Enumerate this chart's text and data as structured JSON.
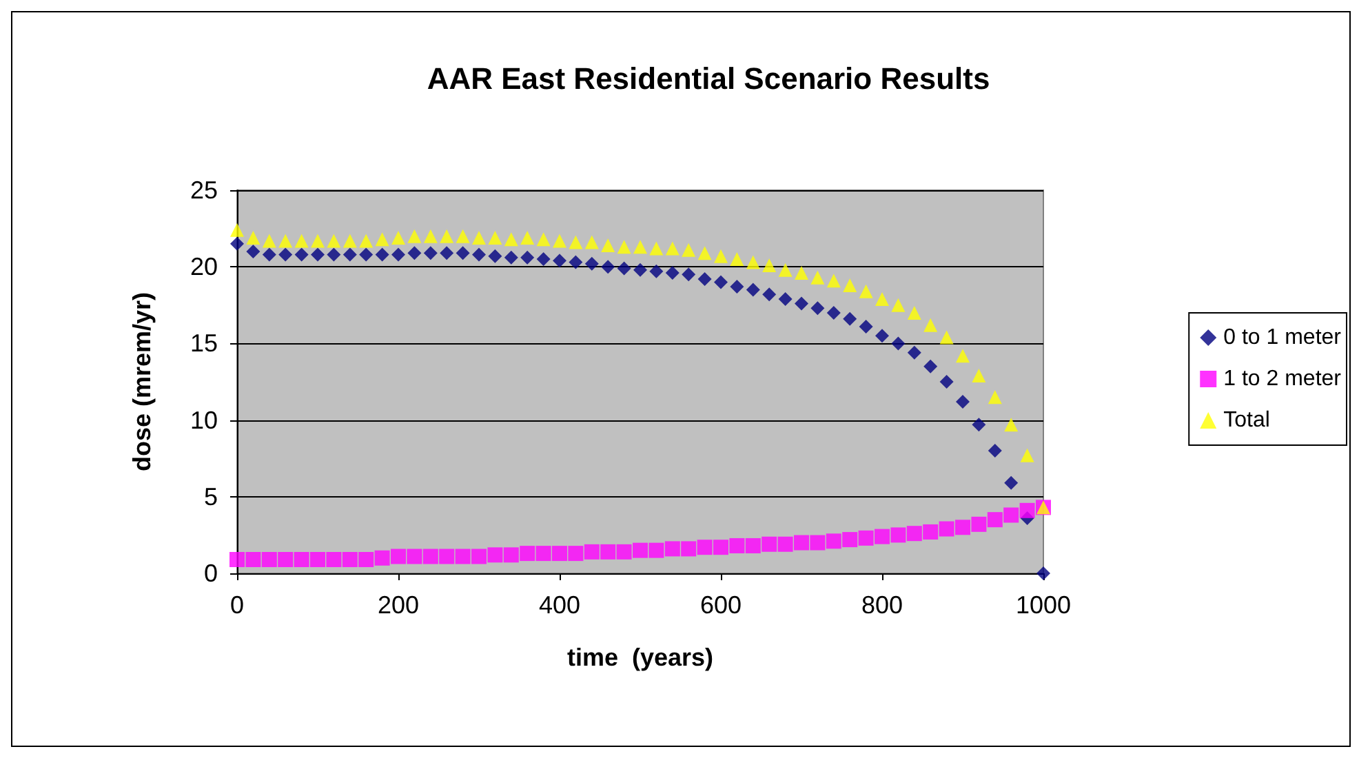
{
  "chart_data": {
    "type": "scatter",
    "title": "AAR East Residential Scenario Results",
    "xlabel": "time  (years)",
    "ylabel": "dose (mrem/yr)",
    "x": [
      0,
      20,
      40,
      60,
      80,
      100,
      120,
      140,
      160,
      180,
      200,
      220,
      240,
      260,
      280,
      300,
      320,
      340,
      360,
      380,
      400,
      420,
      440,
      460,
      480,
      500,
      520,
      540,
      560,
      580,
      600,
      620,
      640,
      660,
      680,
      700,
      720,
      740,
      760,
      780,
      800,
      820,
      840,
      860,
      880,
      900,
      920,
      940,
      960,
      980,
      1000
    ],
    "series": [
      {
        "name": "0 to 1 meter",
        "color": "#000080",
        "marker": "diamond",
        "values": [
          21.5,
          21.0,
          20.8,
          20.8,
          20.8,
          20.8,
          20.8,
          20.8,
          20.8,
          20.8,
          20.8,
          20.9,
          20.9,
          20.9,
          20.9,
          20.8,
          20.7,
          20.6,
          20.6,
          20.5,
          20.4,
          20.3,
          20.2,
          20.0,
          19.9,
          19.8,
          19.7,
          19.6,
          19.5,
          19.2,
          19.0,
          18.7,
          18.5,
          18.2,
          17.9,
          17.6,
          17.3,
          17.0,
          16.6,
          16.1,
          15.5,
          15.0,
          14.4,
          13.5,
          12.5,
          11.2,
          9.7,
          8.0,
          5.9,
          3.6,
          0
        ]
      },
      {
        "name": "1 to 2 meter",
        "color": "#ff00ff",
        "marker": "square",
        "values": [
          0.9,
          0.9,
          0.9,
          0.9,
          0.9,
          0.9,
          0.9,
          0.9,
          0.9,
          1.0,
          1.1,
          1.1,
          1.1,
          1.1,
          1.1,
          1.1,
          1.2,
          1.2,
          1.3,
          1.3,
          1.3,
          1.3,
          1.4,
          1.4,
          1.4,
          1.5,
          1.5,
          1.6,
          1.6,
          1.7,
          1.7,
          1.8,
          1.8,
          1.9,
          1.9,
          2.0,
          2.0,
          2.1,
          2.2,
          2.3,
          2.4,
          2.5,
          2.6,
          2.7,
          2.9,
          3.0,
          3.2,
          3.5,
          3.8,
          4.1,
          4.3
        ]
      },
      {
        "name": "Total",
        "color": "#ffff00",
        "marker": "triangle",
        "values": [
          22.4,
          21.9,
          21.7,
          21.7,
          21.7,
          21.7,
          21.7,
          21.7,
          21.7,
          21.8,
          21.9,
          22.0,
          22.0,
          22.0,
          22.0,
          21.9,
          21.9,
          21.8,
          21.9,
          21.8,
          21.7,
          21.6,
          21.6,
          21.4,
          21.3,
          21.3,
          21.2,
          21.2,
          21.1,
          20.9,
          20.7,
          20.5,
          20.3,
          20.1,
          19.8,
          19.6,
          19.3,
          19.1,
          18.8,
          18.4,
          17.9,
          17.5,
          17.0,
          16.2,
          15.4,
          14.2,
          12.9,
          11.5,
          9.7,
          7.7,
          4.3
        ]
      }
    ],
    "xlim": [
      0,
      1000
    ],
    "xticks": [
      0,
      200,
      400,
      600,
      800,
      1000
    ],
    "ylim": [
      0,
      25
    ],
    "yticks": [
      0,
      5,
      10,
      15,
      20,
      25
    ],
    "grid": "y",
    "legend": "right"
  }
}
